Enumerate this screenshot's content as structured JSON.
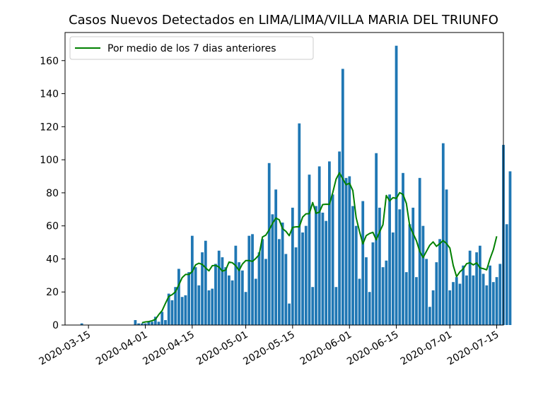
{
  "chart_data": {
    "type": "bar",
    "title": "Casos Nuevos Detectados en LIMA/LIMA/VILLA MARIA DEL TRIUNFO",
    "xlabel": "",
    "ylabel": "",
    "x_start": "2020-03-13",
    "x_end": "2020-07-17",
    "xlim": [
      "2020-03-08",
      "2020-07-17"
    ],
    "ylim": [
      0,
      177
    ],
    "yticks": [
      0,
      20,
      40,
      60,
      80,
      100,
      120,
      140,
      160
    ],
    "xticks": [
      "2020-03-15",
      "2020-04-01",
      "2020-04-15",
      "2020-05-01",
      "2020-05-15",
      "2020-06-01",
      "2020-06-15",
      "2020-07-01",
      "2020-07-15"
    ],
    "values": [
      1,
      0,
      0,
      0,
      0,
      0,
      0,
      0,
      0,
      0,
      0,
      0,
      0,
      0,
      0,
      0,
      3,
      1,
      1,
      1,
      2,
      2,
      5,
      2,
      8,
      3,
      19,
      15,
      23,
      34,
      17,
      18,
      32,
      54,
      35,
      24,
      44,
      51,
      21,
      22,
      37,
      45,
      41,
      35,
      30,
      27,
      48,
      38,
      33,
      20,
      54,
      55,
      28,
      44,
      52,
      40,
      98,
      67,
      82,
      52,
      62,
      43,
      13,
      71,
      47,
      122,
      56,
      60,
      91,
      23,
      72,
      96,
      68,
      63,
      99,
      79,
      23,
      105,
      155,
      89,
      90,
      72,
      60,
      28,
      75,
      41,
      20,
      50,
      104,
      71,
      35,
      39,
      79,
      56,
      169,
      70,
      92,
      32,
      61,
      71,
      29,
      89,
      60,
      40,
      11,
      21,
      38,
      52,
      110,
      82,
      21,
      26,
      29,
      25,
      36,
      30,
      45,
      30,
      44,
      48,
      31,
      24,
      36,
      26,
      29,
      37,
      109,
      61,
      93
    ],
    "series": [
      {
        "type": "line",
        "name": "Por medio de los 7 dias anteriores",
        "color": "#008000",
        "start": "2020-03-31",
        "values": [
          1.4,
          1.9,
          2.1,
          2.6,
          3.4,
          6.3,
          8.7,
          13.1,
          17.3,
          18.4,
          20.1,
          24.3,
          28.7,
          30.6,
          30.6,
          32.3,
          36.4,
          37.4,
          36.7,
          34.6,
          32.8,
          35.9,
          36.1,
          35.1,
          32.6,
          33.3,
          38.1,
          37.7,
          35.9,
          33.0,
          36.9,
          39.0,
          39.0,
          38.5,
          40.3,
          42.5,
          53.3,
          54.4,
          57.6,
          61.5,
          64.7,
          63.7,
          58.3,
          56.7,
          54.1,
          59.1,
          59.4,
          59.4,
          65.3,
          67.3,
          67.4,
          74.1,
          67.6,
          68.3,
          72.9,
          73.1,
          73.0,
          80.1,
          88.3,
          92.1,
          88.4,
          84.9,
          85.8,
          81.4,
          64.9,
          56.6,
          49.1,
          54.1,
          55.4,
          56.1,
          51.6,
          56.4,
          60.7,
          78.4,
          75.1,
          77.1,
          76.6,
          80.1,
          79.0,
          73.6,
          60.0,
          55.4,
          51.0,
          44.6,
          40.8,
          44.6,
          48.3,
          50.3,
          47.6,
          49.3,
          51.1,
          49.3,
          46.6,
          36.1,
          29.3,
          32.2,
          34.0,
          37.1,
          37.7,
          36.4,
          37.6,
          34.6,
          34.1,
          33.4,
          40.1,
          45.6,
          53.7
        ]
      }
    ],
    "bar_color": "#1f77b4",
    "grid": false,
    "legend": "top-left"
  }
}
